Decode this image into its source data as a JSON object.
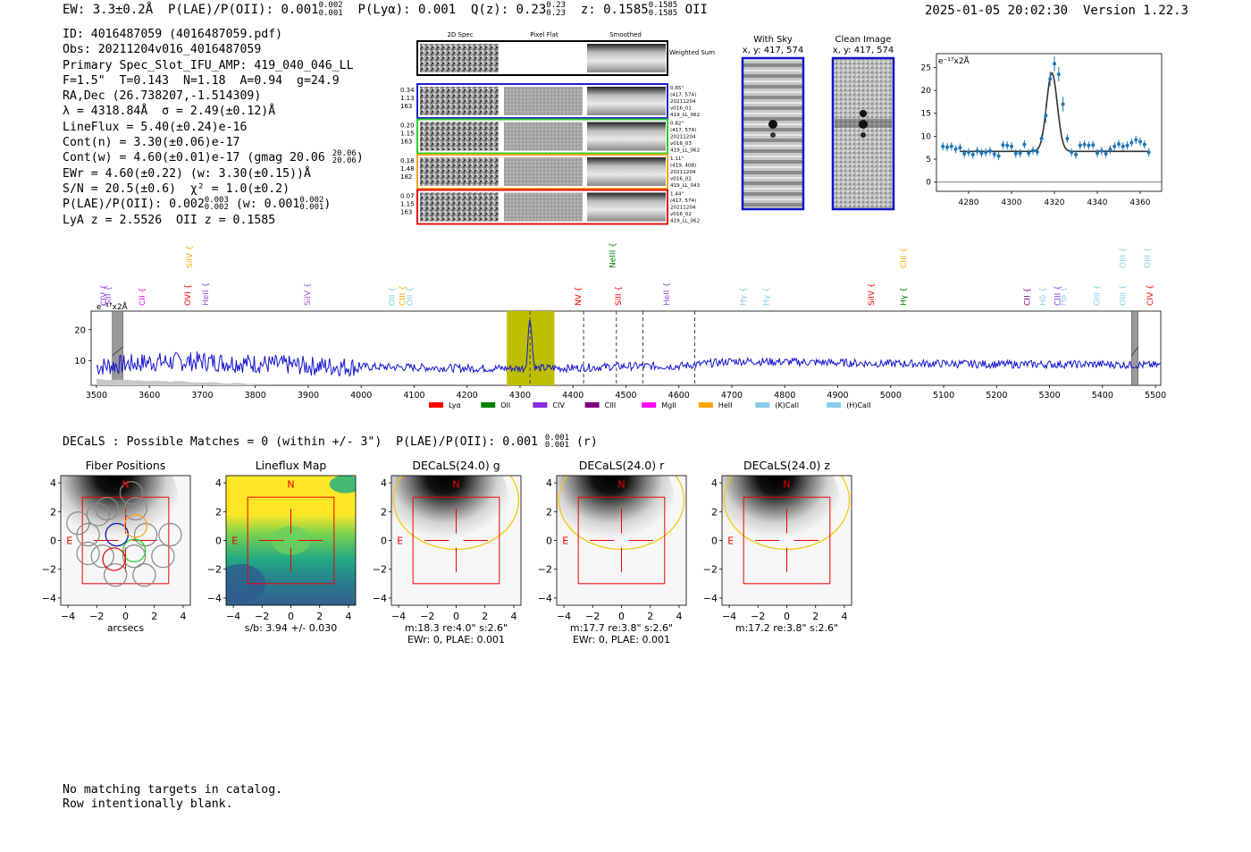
{
  "header": {
    "ew": "EW: 3.3±0.2Å",
    "plae_label": "P(LAE)/P(OII): 0.001",
    "plae_sup": "0.002",
    "plae_sub": "0.001",
    "plya": "P(Lyα): 0.001",
    "qz_label": "Q(z): 0.23",
    "qz_sup": "0.23",
    "qz_sub": "0.23",
    "z_label": "z: 0.1585",
    "z_sup": "0.1585",
    "z_sub": "0.1585",
    "z_line": "OII",
    "timestamp": "2025-01-05 20:02:30",
    "version": "Version 1.22.3"
  },
  "info": {
    "id": "ID: 4016487059 (4016487059.pdf)",
    "obs": "Obs: 20211204v016_4016487059",
    "primary": "Primary Spec_Slot_IFU_AMP: 419_040_046_LL",
    "params": "F=1.5\"  T=0.143  N=1.18  A=0.94  g=24.9",
    "radec": "RA,Dec (26.738207,-1.514309)",
    "lambda_sigma": "λ = 4318.84Å  σ = 2.49(±0.12)Å",
    "lineflux": "LineFlux = 5.40(±0.24)e-16",
    "contn": "Cont(n) = 3.30(±0.06)e-17",
    "contw": "Cont(w) = 4.60(±0.01)e-17 (gmag 20.06",
    "contw_sup": "20.06",
    "contw_sub": "20.06",
    "ewr": "EWr = 4.60(±0.22) (w: 3.30(±0.15))Å",
    "sn": "S/N = 20.5(±0.6)  χ² = 1.0(±0.2)",
    "plae": "P(LAE)/P(OII): 0.002",
    "plae_sup": "0.003",
    "plae_sub": "0.002",
    "plae_w": "(w: 0.001",
    "plae_w_sup": "0.002",
    "plae_w_sub": "0.001",
    "lya": "LyA z = 2.5526  OII z = 0.1585"
  },
  "cutouts": {
    "col_titles": [
      "2D Spec",
      "Pixel Flat",
      "Smoothed"
    ],
    "weighted_sum": "Weighted Sum",
    "rows": [
      {
        "left": [
          "0.34",
          "1.13",
          "163"
        ],
        "right": [
          "0.65\"",
          "(417, 574)",
          "20211204",
          "v016_01",
          "419_LL_062"
        ],
        "color": "#1f1fd0"
      },
      {
        "left": [
          "0.20",
          "1.15",
          "163"
        ],
        "right": [
          "0.82\"",
          "(417, 574)",
          "20211204",
          "v016_03",
          "419_LL_062"
        ],
        "color": "#2ccd2c"
      },
      {
        "left": [
          "0.18",
          "1.48",
          "182"
        ],
        "right": [
          "1.11\"",
          "(419, 408)",
          "20211204",
          "v016_02",
          "419_LL_043"
        ],
        "color": "#f5a623"
      },
      {
        "left": [
          "0.07",
          "1.15",
          "163"
        ],
        "right": [
          "1.44\"",
          "(417, 574)",
          "20211204",
          "v016_02",
          "419_LL_062"
        ],
        "color": "#e01010"
      }
    ]
  },
  "sky": {
    "with_sky_title": "With Sky",
    "with_sky_xy": "x, y: 417, 574",
    "clean_title": "Clean Image",
    "clean_xy": "x, y: 417, 574"
  },
  "zoom_chart": {
    "ylabel": "e⁻¹⁷x2Å",
    "xticks": [
      "4280",
      "4300",
      "4320",
      "4340",
      "4360"
    ],
    "yticks": [
      "0",
      "5",
      "10",
      "15",
      "20",
      "25"
    ]
  },
  "spectrum": {
    "ylabel": "e⁻¹⁷x2Å",
    "xticks": [
      "3500",
      "3600",
      "3700",
      "3800",
      "3900",
      "4000",
      "4100",
      "4200",
      "4300",
      "4400",
      "4500",
      "4600",
      "4700",
      "4800",
      "4900",
      "5000",
      "5100",
      "5200",
      "5300",
      "5400",
      "5500"
    ],
    "yticks": [
      "10",
      "20"
    ],
    "legend": [
      {
        "label": "Lyα",
        "color": "#ff0000"
      },
      {
        "label": "OII",
        "color": "#008000"
      },
      {
        "label": "CIV",
        "color": "#8a2be2"
      },
      {
        "label": "CIII",
        "color": "#800080"
      },
      {
        "label": "MgII",
        "color": "#ff00ff"
      },
      {
        "label": "HeII",
        "color": "#ffa500"
      },
      {
        "label": "(K)CaII",
        "color": "#87ceeb"
      },
      {
        "label": "(H)CaII",
        "color": "#87ceeb"
      }
    ],
    "line_labels": [
      {
        "text": "CIV",
        "wave": 3514,
        "color": "#8a2be2",
        "row": "low"
      },
      {
        "text": "SiII",
        "wave": 3522,
        "color": "#9b4dd0",
        "row": "low"
      },
      {
        "text": "CII",
        "wave": 3586,
        "color": "#ff00ff",
        "row": "low"
      },
      {
        "text": "OVI",
        "wave": 3672,
        "color": "#ff0000",
        "row": "low"
      },
      {
        "text": "SiIV",
        "wave": 3676,
        "color": "#ffa500",
        "row": "high"
      },
      {
        "text": "HeII",
        "wave": 3706,
        "color": "#9b4dd0",
        "row": "low"
      },
      {
        "text": "SiIV",
        "wave": 3898,
        "color": "#9b4dd0",
        "row": "low"
      },
      {
        "text": "OII",
        "wave": 4058,
        "color": "#87ceeb",
        "row": "low"
      },
      {
        "text": "CIII",
        "wave": 4078,
        "color": "#ffa500",
        "row": "low"
      },
      {
        "text": "OII",
        "wave": 4092,
        "color": "#87ceeb",
        "row": "low"
      },
      {
        "text": "NV",
        "wave": 4410,
        "color": "#ff0000",
        "row": "low"
      },
      {
        "text": "NeIII",
        "wave": 4475,
        "color": "#008000",
        "row": "high"
      },
      {
        "text": "SiII",
        "wave": 4486,
        "color": "#ff0000",
        "row": "low"
      },
      {
        "text": "HeII",
        "wave": 4577,
        "color": "#9b4dd0",
        "row": "low"
      },
      {
        "text": "Hγ",
        "wave": 4721,
        "color": "#87ceeb",
        "row": "low"
      },
      {
        "text": "Hγ",
        "wave": 4765,
        "color": "#87ceeb",
        "row": "low"
      },
      {
        "text": "SiIV",
        "wave": 4963,
        "color": "#ff0000",
        "row": "low"
      },
      {
        "text": "CIII",
        "wave": 5024,
        "color": "#ffa500",
        "row": "high"
      },
      {
        "text": "Hγ",
        "wave": 5024,
        "color": "#008000",
        "row": "low"
      },
      {
        "text": "CII",
        "wave": 5258,
        "color": "#800080",
        "row": "low"
      },
      {
        "text": "Hδ",
        "wave": 5287,
        "color": "#87ceeb",
        "row": "low"
      },
      {
        "text": "CIII",
        "wave": 5315,
        "color": "#8a2be2",
        "row": "low"
      },
      {
        "text": "Hβ",
        "wave": 5325,
        "color": "#87ceeb",
        "row": "low"
      },
      {
        "text": "OIII",
        "wave": 5389,
        "color": "#87ceeb",
        "row": "low"
      },
      {
        "text": "OIII",
        "wave": 5438,
        "color": "#87ceeb",
        "row": "low"
      },
      {
        "text": "OIII",
        "wave": 5438,
        "color": "#87ceeb",
        "row": "high"
      },
      {
        "text": "OIII",
        "wave": 5485,
        "color": "#87ceeb",
        "row": "high"
      },
      {
        "text": "CIV",
        "wave": 5490,
        "color": "#ff0000",
        "row": "low"
      }
    ]
  },
  "decals": {
    "summary": "DECaLS : Possible Matches = 0 (within +/- 3\")  P(LAE)/P(OII): 0.001",
    "summary_sup": "0.001",
    "summary_sub": "0.001",
    "summary_tail": "(r)",
    "panels": [
      {
        "title": "Fiber Positions",
        "cap1": "arcsecs",
        "cap2": "",
        "kind": "fiber"
      },
      {
        "title": "Lineflux Map",
        "cap1": "s/b: 3.94 +/- 0.030",
        "cap2": "",
        "kind": "lineflux"
      },
      {
        "title": "DECaLS(24.0) g",
        "cap1": "m:18.3  re:4.0\"  s:2.6\"",
        "cap2": "EWr: 0, PLAE: 0.001",
        "kind": "decals"
      },
      {
        "title": "DECaLS(24.0) r",
        "cap1": "m:17.7  re:3.8\"  s:2.6\"",
        "cap2": "EWr: 0, PLAE: 0.001",
        "kind": "decals"
      },
      {
        "title": "DECaLS(24.0) z",
        "cap1": "m:17.2  re:3.8\"  s:2.6\"",
        "cap2": "",
        "kind": "decals"
      }
    ],
    "ticks": [
      "-4",
      "-2",
      "0",
      "2",
      "4"
    ],
    "north": "N",
    "east": "E"
  },
  "footer": {
    "line1": "No matching targets in catalog.",
    "line2": "Row intentionally blank."
  },
  "chart_data": [
    {
      "type": "scatter",
      "ylabel": "e⁻¹⁷x2Å",
      "xlim": [
        4265,
        4370
      ],
      "ylim": [
        -2,
        28
      ],
      "points_x": [
        4268,
        4270,
        4272,
        4274,
        4276,
        4278,
        4280,
        4282,
        4284,
        4286,
        4288,
        4290,
        4292,
        4294,
        4296,
        4298,
        4300,
        4302,
        4304,
        4306,
        4308,
        4310,
        4312,
        4314,
        4316,
        4318,
        4320,
        4322,
        4324,
        4326,
        4328,
        4330,
        4332,
        4334,
        4336,
        4338,
        4340,
        4342,
        4344,
        4346,
        4348,
        4350,
        4352,
        4354,
        4356,
        4358,
        4360,
        4362,
        4364
      ],
      "points_y": [
        7.8,
        7.6,
        7.8,
        7.2,
        7.5,
        6.2,
        6.5,
        6.0,
        6.8,
        6.3,
        6.5,
        6.8,
        6.1,
        5.7,
        8.1,
        8.0,
        7.8,
        6.2,
        6.3,
        8.2,
        6.3,
        6.9,
        6.6,
        9.5,
        14.5,
        22.5,
        25.8,
        23.5,
        17.0,
        9.5,
        6.5,
        6.0,
        8.0,
        8.2,
        8.0,
        8.1,
        6.3,
        6.8,
        6.2,
        7.1,
        7.8,
        8.3,
        7.8,
        8.0,
        8.6,
        9.2,
        8.8,
        8.2,
        6.5
      ],
      "fit": {
        "continuum": 6.7,
        "center": 4318.84,
        "sigma": 2.49,
        "peak": 23.8
      }
    },
    {
      "type": "line",
      "ylabel": "e⁻¹⁷x2Å",
      "xlim": [
        3490,
        5510
      ],
      "ylim": [
        2,
        26
      ],
      "highlight_band": [
        4275,
        4365
      ],
      "peak": {
        "wave": 4318.84,
        "height": 24
      },
      "dashed_lines": [
        4318.84,
        4420,
        4482,
        4532,
        4630
      ],
      "masked_regions": [
        [
          3530,
          3550
        ],
        [
          5455,
          5467
        ]
      ],
      "continuum_profile": [
        [
          3500,
          8.0
        ],
        [
          3600,
          9.5
        ],
        [
          3700,
          9.8
        ],
        [
          3800,
          9.0
        ],
        [
          3900,
          8.3
        ],
        [
          4000,
          8.0
        ],
        [
          4100,
          7.8
        ],
        [
          4200,
          7.5
        ],
        [
          4300,
          7.5
        ],
        [
          4400,
          7.6
        ],
        [
          4500,
          8.2
        ],
        [
          4600,
          8.2
        ],
        [
          4700,
          9.8
        ],
        [
          4800,
          9.6
        ],
        [
          4900,
          9.3
        ],
        [
          5000,
          9.0
        ],
        [
          5100,
          9.0
        ],
        [
          5200,
          8.8
        ],
        [
          5300,
          8.8
        ],
        [
          5400,
          8.8
        ],
        [
          5500,
          8.5
        ]
      ]
    }
  ]
}
